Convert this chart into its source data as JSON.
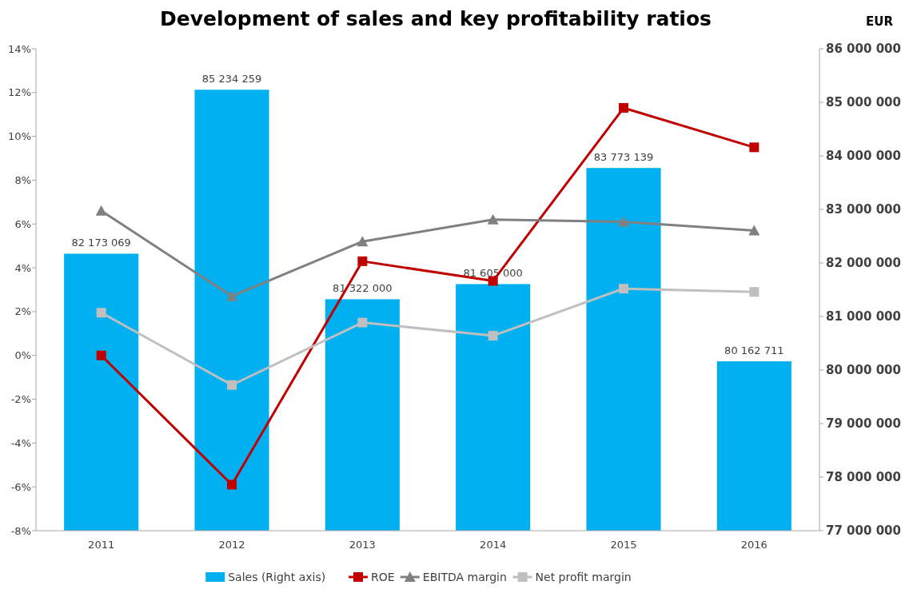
{
  "chart_data": {
    "type": "bar",
    "title": "Development of sales and key profitability ratios",
    "y2label": "EUR",
    "categories": [
      "2011",
      "2012",
      "2013",
      "2014",
      "2015",
      "2016"
    ],
    "series": [
      {
        "name": "Sales (Right axis)",
        "axis": "y2",
        "color": "#00b0f0",
        "values": [
          82173069,
          85234259,
          81322000,
          81605000,
          83773139,
          80162711
        ],
        "value_labels": [
          "82 173 069",
          "85 234 259",
          "81 322 000",
          "81 605 000",
          "83 773 139",
          "80 162 711"
        ]
      },
      {
        "name": "ROE",
        "type": "line",
        "color": "#c00000",
        "marker": "square",
        "values": [
          0,
          -5.9,
          4.3,
          3.4,
          11.3,
          9.5
        ]
      },
      {
        "name": "EBITDA margin",
        "type": "line",
        "color": "#808080",
        "marker": "triangle",
        "values": [
          6.6,
          2.7,
          5.2,
          6.2,
          6.1,
          5.7
        ]
      },
      {
        "name": "Net profit margin",
        "type": "line",
        "color": "#bfbfbf",
        "marker": "square",
        "values": [
          1.95,
          -1.35,
          1.5,
          0.9,
          3.05,
          2.9
        ]
      }
    ],
    "ylim": [
      -8,
      14
    ],
    "yticks": [
      {
        "value": -8,
        "label": "-8%"
      },
      {
        "value": -6,
        "label": "-6%"
      },
      {
        "value": -4,
        "label": "-4%"
      },
      {
        "value": -2,
        "label": "-2%"
      },
      {
        "value": 0,
        "label": "0%"
      },
      {
        "value": 2,
        "label": "2%"
      },
      {
        "value": 4,
        "label": "4%"
      },
      {
        "value": 6,
        "label": "6%"
      },
      {
        "value": 8,
        "label": "8%"
      },
      {
        "value": 10,
        "label": "10%"
      },
      {
        "value": 12,
        "label": "12%"
      },
      {
        "value": 14,
        "label": "14%"
      }
    ],
    "y2lim": [
      77000000,
      86000000
    ],
    "y2ticks": [
      {
        "value": 77000000,
        "label": "77 000 000"
      },
      {
        "value": 78000000,
        "label": "78 000 000"
      },
      {
        "value": 79000000,
        "label": "79 000 000"
      },
      {
        "value": 80000000,
        "label": "80 000 000"
      },
      {
        "value": 81000000,
        "label": "81 000 000"
      },
      {
        "value": 82000000,
        "label": "82 000 000"
      },
      {
        "value": 83000000,
        "label": "83 000 000"
      },
      {
        "value": 84000000,
        "label": "84 000 000"
      },
      {
        "value": 85000000,
        "label": "85 000 000"
      },
      {
        "value": 86000000,
        "label": "86 000 000"
      }
    ],
    "grid": false,
    "legend": "bottom",
    "line_style": "solid"
  }
}
